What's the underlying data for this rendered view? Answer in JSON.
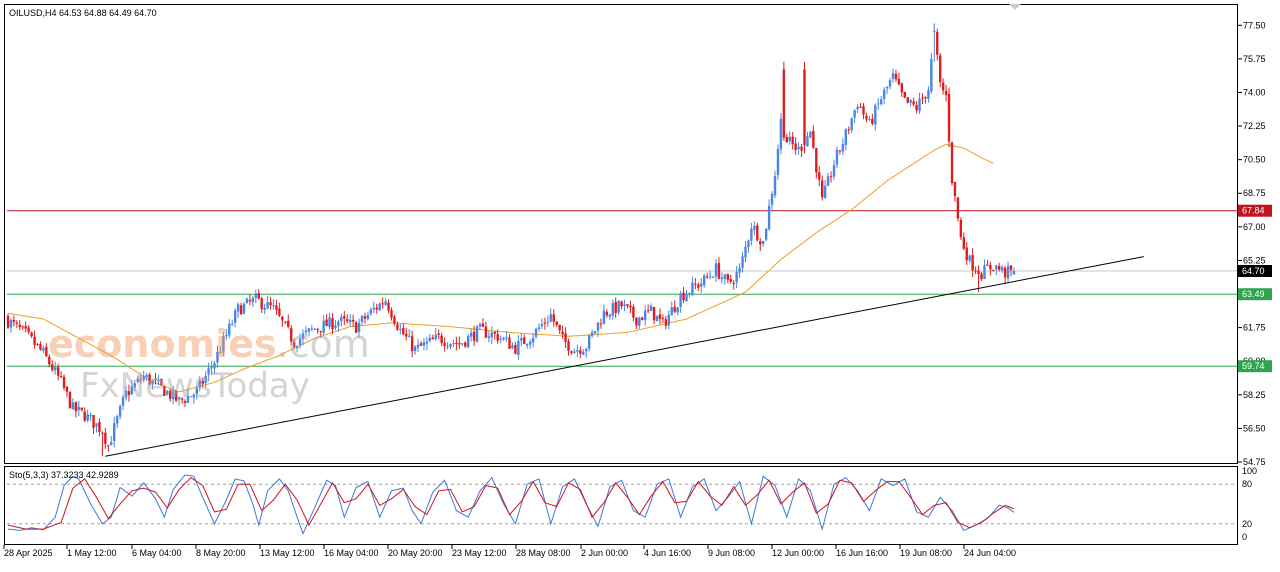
{
  "header": {
    "symbol": "OILUSD,H4",
    "ohlc": "64.53 64.88 64.49 64.70"
  },
  "stochastic": {
    "label": "Sto(5,3,3) 37.3233 42.9289",
    "levels": [
      80,
      20
    ],
    "scale_labels": [
      "100",
      "80",
      "20",
      "0"
    ]
  },
  "watermark": {
    "line1_brand": "economies",
    "line1_domain": ".com",
    "line2": "FxNewsToday"
  },
  "colors": {
    "bull": "#4a86e8",
    "bear": "#e01c1c",
    "ma": "#f0a020",
    "resistance": "#c0141e",
    "support": "#2ea44f",
    "trendline": "#000000",
    "sto_main": "#3c78d8",
    "sto_signal": "#d0141e"
  },
  "chart_data": {
    "type": "candlestick",
    "symbol": "OILUSD",
    "timeframe": "H4",
    "y_ticks": [
      77.5,
      75.75,
      74.0,
      72.25,
      70.5,
      68.75,
      67.0,
      65.25,
      63.5,
      61.75,
      60.0,
      58.25,
      56.5,
      54.75
    ],
    "ylim": [
      54.75,
      78.4
    ],
    "x_tick_labels": [
      "28 Apr 2025",
      "1 May 12:00",
      "6 May 04:00",
      "8 May 20:00",
      "13 May 12:00",
      "16 May 04:00",
      "20 May 20:00",
      "23 May 12:00",
      "28 May 08:00",
      "2 Jun 00:00",
      "4 Jun 16:00",
      "9 Jun 08:00",
      "12 Jun 00:00",
      "16 Jun 16:00",
      "19 Jun 08:00",
      "24 Jun 04:00"
    ],
    "price_labels": [
      {
        "value": 67.84,
        "text": "67.84",
        "kind": "resistance"
      },
      {
        "value": 64.7,
        "text": "64.70",
        "kind": "current"
      },
      {
        "value": 63.49,
        "text": "63.49",
        "kind": "support"
      },
      {
        "value": 59.74,
        "text": "59.74",
        "kind": "support"
      }
    ],
    "horizontal_lines": [
      67.84,
      63.49,
      59.74,
      64.7
    ],
    "trendline": {
      "from_bar": 33,
      "from_price": 55.05,
      "to_bar": 385,
      "to_price": 65.45
    },
    "close_waypoints": [
      [
        0,
        62.1
      ],
      [
        6,
        61.4
      ],
      [
        12,
        60.4
      ],
      [
        18,
        58.9
      ],
      [
        22,
        57.5
      ],
      [
        26,
        57.2
      ],
      [
        32,
        56.4
      ],
      [
        34,
        55.6
      ],
      [
        40,
        58.3
      ],
      [
        46,
        59.2
      ],
      [
        52,
        58.6
      ],
      [
        58,
        57.9
      ],
      [
        64,
        58.4
      ],
      [
        70,
        60.0
      ],
      [
        78,
        62.7
      ],
      [
        84,
        63.2
      ],
      [
        90,
        62.7
      ],
      [
        97,
        61.0
      ],
      [
        104,
        61.7
      ],
      [
        112,
        62.1
      ],
      [
        118,
        61.8
      ],
      [
        124,
        62.7
      ],
      [
        128,
        63.2
      ],
      [
        133,
        61.6
      ],
      [
        138,
        60.6
      ],
      [
        146,
        61.2
      ],
      [
        153,
        60.9
      ],
      [
        160,
        61.6
      ],
      [
        166,
        61.3
      ],
      [
        172,
        60.7
      ],
      [
        178,
        61.4
      ],
      [
        184,
        62.4
      ],
      [
        188,
        61.1
      ],
      [
        192,
        60.6
      ],
      [
        196,
        60.8
      ],
      [
        202,
        62.5
      ],
      [
        208,
        62.9
      ],
      [
        213,
        62.2
      ],
      [
        218,
        62.6
      ],
      [
        222,
        61.9
      ],
      [
        228,
        63.4
      ],
      [
        236,
        64.2
      ],
      [
        240,
        64.8
      ],
      [
        244,
        64.0
      ],
      [
        248,
        64.7
      ],
      [
        252,
        67.1
      ],
      [
        256,
        66.2
      ],
      [
        260,
        69.8
      ],
      [
        262,
        72.5
      ],
      [
        264,
        71.5
      ],
      [
        268,
        71.0
      ],
      [
        272,
        72.0
      ],
      [
        276,
        68.3
      ],
      [
        280,
        70.3
      ],
      [
        284,
        71.8
      ],
      [
        288,
        73.5
      ],
      [
        292,
        72.3
      ],
      [
        296,
        73.7
      ],
      [
        300,
        74.8
      ],
      [
        304,
        73.5
      ],
      [
        308,
        73.2
      ],
      [
        312,
        74.2
      ],
      [
        314,
        77.0
      ],
      [
        316,
        74.4
      ],
      [
        318,
        73.8
      ],
      [
        320,
        69.5
      ],
      [
        323,
        66.4
      ],
      [
        326,
        65.2
      ],
      [
        330,
        64.6
      ],
      [
        334,
        65.0
      ],
      [
        338,
        64.6
      ],
      [
        341,
        64.7
      ]
    ],
    "spikes": [
      {
        "bar": 263,
        "high": 75.6
      },
      {
        "bar": 270,
        "high": 75.6
      },
      {
        "bar": 314,
        "high": 77.6
      },
      {
        "bar": 329,
        "low": 63.6
      },
      {
        "bar": 32,
        "low": 55.05
      }
    ],
    "moving_average_waypoints": [
      [
        0,
        62.5
      ],
      [
        12,
        62.2
      ],
      [
        24,
        61.2
      ],
      [
        36,
        60.2
      ],
      [
        48,
        59.0
      ],
      [
        58,
        58.4
      ],
      [
        70,
        58.9
      ],
      [
        80,
        59.6
      ],
      [
        92,
        60.3
      ],
      [
        104,
        61.2
      ],
      [
        116,
        61.8
      ],
      [
        130,
        62.0
      ],
      [
        150,
        61.8
      ],
      [
        170,
        61.5
      ],
      [
        190,
        61.3
      ],
      [
        210,
        61.5
      ],
      [
        230,
        62.2
      ],
      [
        250,
        63.6
      ],
      [
        262,
        65.3
      ],
      [
        274,
        66.7
      ],
      [
        286,
        67.9
      ],
      [
        298,
        69.4
      ],
      [
        308,
        70.4
      ],
      [
        314,
        71.0
      ],
      [
        318,
        71.3
      ],
      [
        324,
        71.1
      ],
      [
        330,
        70.6
      ],
      [
        334,
        70.3
      ]
    ],
    "stochastic": {
      "ylim": [
        0,
        100
      ],
      "main_waypoints": [
        [
          0,
          12
        ],
        [
          4,
          10
        ],
        [
          8,
          14
        ],
        [
          12,
          11
        ],
        [
          16,
          30
        ],
        [
          19,
          78
        ],
        [
          22,
          92
        ],
        [
          24,
          88
        ],
        [
          28,
          50
        ],
        [
          32,
          20
        ],
        [
          35,
          30
        ],
        [
          38,
          75
        ],
        [
          42,
          62
        ],
        [
          46,
          82
        ],
        [
          50,
          58
        ],
        [
          53,
          30
        ],
        [
          56,
          72
        ],
        [
          60,
          94
        ],
        [
          63,
          92
        ],
        [
          66,
          60
        ],
        [
          70,
          20
        ],
        [
          74,
          56
        ],
        [
          77,
          88
        ],
        [
          80,
          85
        ],
        [
          83,
          50
        ],
        [
          85,
          18
        ],
        [
          88,
          70
        ],
        [
          92,
          88
        ],
        [
          95,
          70
        ],
        [
          98,
          30
        ],
        [
          100,
          5
        ],
        [
          104,
          45
        ],
        [
          108,
          86
        ],
        [
          111,
          78
        ],
        [
          114,
          30
        ],
        [
          118,
          75
        ],
        [
          122,
          84
        ],
        [
          126,
          30
        ],
        [
          130,
          70
        ],
        [
          134,
          74
        ],
        [
          137,
          40
        ],
        [
          140,
          20
        ],
        [
          144,
          68
        ],
        [
          148,
          86
        ],
        [
          152,
          40
        ],
        [
          156,
          30
        ],
        [
          160,
          70
        ],
        [
          164,
          90
        ],
        [
          168,
          50
        ],
        [
          172,
          20
        ],
        [
          176,
          80
        ],
        [
          180,
          88
        ],
        [
          184,
          20
        ],
        [
          188,
          76
        ],
        [
          192,
          88
        ],
        [
          196,
          50
        ],
        [
          200,
          16
        ],
        [
          204,
          76
        ],
        [
          208,
          86
        ],
        [
          212,
          40
        ],
        [
          216,
          30
        ],
        [
          220,
          80
        ],
        [
          224,
          88
        ],
        [
          228,
          30
        ],
        [
          232,
          76
        ],
        [
          236,
          88
        ],
        [
          240,
          40
        ],
        [
          244,
          60
        ],
        [
          248,
          84
        ],
        [
          252,
          20
        ],
        [
          256,
          92
        ],
        [
          260,
          78
        ],
        [
          264,
          30
        ],
        [
          268,
          88
        ],
        [
          272,
          70
        ],
        [
          276,
          12
        ],
        [
          280,
          80
        ],
        [
          284,
          90
        ],
        [
          288,
          70
        ],
        [
          292,
          40
        ],
        [
          296,
          88
        ],
        [
          300,
          78
        ],
        [
          304,
          88
        ],
        [
          308,
          38
        ],
        [
          312,
          30
        ],
        [
          316,
          60
        ],
        [
          320,
          40
        ],
        [
          324,
          10
        ],
        [
          328,
          18
        ],
        [
          332,
          28
        ],
        [
          336,
          48
        ],
        [
          339,
          44
        ],
        [
          341,
          37.3233
        ]
      ],
      "signal_waypoints": [
        [
          0,
          18
        ],
        [
          6,
          12
        ],
        [
          12,
          12
        ],
        [
          18,
          22
        ],
        [
          22,
          74
        ],
        [
          26,
          88
        ],
        [
          30,
          60
        ],
        [
          34,
          28
        ],
        [
          38,
          50
        ],
        [
          42,
          70
        ],
        [
          46,
          74
        ],
        [
          50,
          68
        ],
        [
          54,
          44
        ],
        [
          58,
          72
        ],
        [
          62,
          90
        ],
        [
          66,
          78
        ],
        [
          70,
          38
        ],
        [
          74,
          42
        ],
        [
          78,
          80
        ],
        [
          82,
          80
        ],
        [
          86,
          40
        ],
        [
          90,
          56
        ],
        [
          94,
          80
        ],
        [
          98,
          56
        ],
        [
          102,
          18
        ],
        [
          106,
          50
        ],
        [
          110,
          82
        ],
        [
          114,
          52
        ],
        [
          118,
          58
        ],
        [
          122,
          80
        ],
        [
          126,
          48
        ],
        [
          130,
          58
        ],
        [
          134,
          72
        ],
        [
          138,
          46
        ],
        [
          142,
          34
        ],
        [
          146,
          70
        ],
        [
          150,
          72
        ],
        [
          154,
          38
        ],
        [
          158,
          46
        ],
        [
          162,
          78
        ],
        [
          166,
          74
        ],
        [
          170,
          34
        ],
        [
          174,
          54
        ],
        [
          178,
          84
        ],
        [
          182,
          52
        ],
        [
          186,
          46
        ],
        [
          190,
          82
        ],
        [
          194,
          72
        ],
        [
          198,
          30
        ],
        [
          202,
          52
        ],
        [
          206,
          82
        ],
        [
          210,
          60
        ],
        [
          214,
          34
        ],
        [
          218,
          62
        ],
        [
          222,
          84
        ],
        [
          226,
          52
        ],
        [
          230,
          54
        ],
        [
          234,
          84
        ],
        [
          238,
          62
        ],
        [
          242,
          48
        ],
        [
          246,
          76
        ],
        [
          250,
          48
        ],
        [
          254,
          64
        ],
        [
          258,
          86
        ],
        [
          262,
          50
        ],
        [
          266,
          68
        ],
        [
          270,
          82
        ],
        [
          274,
          36
        ],
        [
          278,
          50
        ],
        [
          282,
          86
        ],
        [
          286,
          82
        ],
        [
          290,
          54
        ],
        [
          294,
          70
        ],
        [
          298,
          84
        ],
        [
          302,
          84
        ],
        [
          306,
          60
        ],
        [
          310,
          34
        ],
        [
          314,
          48
        ],
        [
          318,
          52
        ],
        [
          322,
          22
        ],
        [
          326,
          14
        ],
        [
          330,
          22
        ],
        [
          334,
          36
        ],
        [
          338,
          48
        ],
        [
          341,
          42.9289
        ]
      ]
    }
  }
}
